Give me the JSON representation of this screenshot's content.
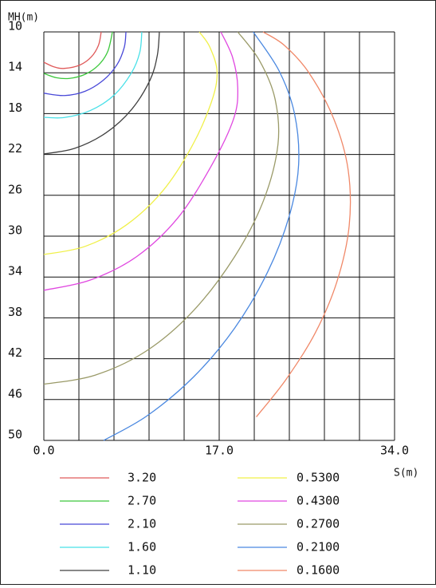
{
  "chart_data": {
    "type": "contour",
    "xlabel": "S(m)",
    "ylabel": "MH(m)",
    "xlim": [
      0,
      34
    ],
    "ylim": [
      10,
      50
    ],
    "y_inverted": true,
    "xticks": [
      {
        "value": 0,
        "label": "0.0"
      },
      {
        "value": 17,
        "label": "17.0"
      },
      {
        "value": 34,
        "label": "34.0"
      }
    ],
    "yticks": [
      10,
      14,
      18,
      22,
      26,
      30,
      34,
      38,
      42,
      46,
      50
    ],
    "xgrid": [
      0,
      3.4,
      6.8,
      10.2,
      13.6,
      17,
      20.4,
      23.8,
      27.2,
      30.6,
      34
    ],
    "grid": true,
    "series": [
      {
        "name": "3.20",
        "color": "#e05a5a",
        "x": [
          0,
          1.0,
          2.0,
          3.5,
          4.6,
          5.3,
          5.56
        ],
        "y": [
          12.97,
          13.43,
          13.57,
          13.24,
          12.45,
          11.3,
          10
        ]
      },
      {
        "name": "2.70",
        "color": "#3cc83c",
        "x": [
          0,
          1.2,
          2.5,
          4.0,
          5.3,
          6.2,
          6.65
        ],
        "y": [
          14.06,
          14.48,
          14.55,
          14.15,
          13.25,
          11.9,
          10
        ]
      },
      {
        "name": "2.10",
        "color": "#4848d8",
        "x": [
          0,
          2,
          4,
          5.8,
          7.1,
          7.8,
          7.96
        ],
        "y": [
          16.0,
          16.23,
          15.81,
          14.7,
          13.2,
          11.5,
          10
        ]
      },
      {
        "name": "1.60",
        "color": "#48e0e8",
        "x": [
          0,
          2,
          4.5,
          6.8,
          8.5,
          9.3,
          9.5
        ],
        "y": [
          18.36,
          18.38,
          17.7,
          16.2,
          14.0,
          12.0,
          10
        ]
      },
      {
        "name": "1.10",
        "color": "#404040",
        "x": [
          0,
          3,
          6,
          8.5,
          10.3,
          11.0,
          11.2
        ],
        "y": [
          21.95,
          21.4,
          19.9,
          17.6,
          14.7,
          12.3,
          10
        ]
      },
      {
        "name": "0.5300",
        "color": "#f0f048",
        "x": [
          0,
          4,
          8,
          11.5,
          14.3,
          16.2,
          16.8,
          16.1,
          15.07
        ],
        "y": [
          31.8,
          31.0,
          28.9,
          25.6,
          21.3,
          17.0,
          14.0,
          11.5,
          10
        ]
      },
      {
        "name": "0.4300",
        "color": "#e048e0",
        "x": [
          0,
          4.5,
          9,
          13,
          16.3,
          18.4,
          18.8,
          18.3,
          17.16
        ],
        "y": [
          35.3,
          34.3,
          32.0,
          28.2,
          23.0,
          18.5,
          15.5,
          12.5,
          10
        ]
      },
      {
        "name": "0.2700",
        "color": "#9a9a68",
        "x": [
          0,
          5,
          10,
          14.5,
          18.5,
          21.3,
          22.7,
          22.4,
          20.9,
          18.8
        ],
        "y": [
          44.5,
          43.6,
          41.2,
          37.3,
          32.0,
          26.5,
          21.0,
          16.5,
          12.8,
          10
        ]
      },
      {
        "name": "0.2100",
        "color": "#4a88e0",
        "x": [
          5.8,
          10,
          14.5,
          18.5,
          21.7,
          23.8,
          24.7,
          24.3,
          22.8,
          20.3
        ],
        "y": [
          50,
          47.6,
          43.8,
          39.0,
          33.5,
          28.0,
          23.0,
          18.0,
          13.8,
          10
        ]
      },
      {
        "name": "0.1600",
        "color": "#f08868",
        "x": [
          20.6,
          23.5,
          26.3,
          28.4,
          29.6,
          29.5,
          28.1,
          25.7,
          23.3,
          21.25
        ],
        "y": [
          47.7,
          44.0,
          39.5,
          34.5,
          29.0,
          23.5,
          18.5,
          14.0,
          11.3,
          10
        ]
      }
    ]
  }
}
